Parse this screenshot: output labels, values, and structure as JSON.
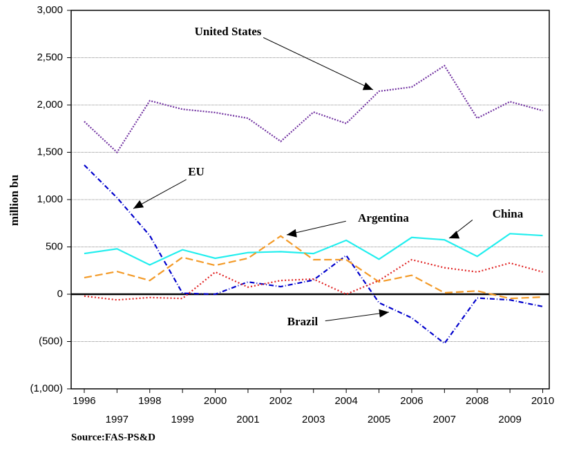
{
  "chart_data": {
    "type": "line",
    "y_label": "million bu",
    "source": "Source:FAS-PS&D",
    "x": [
      1996,
      1997,
      1998,
      1999,
      2000,
      2001,
      2002,
      2003,
      2004,
      2005,
      2006,
      2007,
      2008,
      2009,
      2010
    ],
    "xlim": [
      1995.6,
      2010.2
    ],
    "xticks": [
      1996,
      1997,
      1998,
      1999,
      2000,
      2001,
      2002,
      2003,
      2004,
      2005,
      2006,
      2007,
      2008,
      2009,
      2010
    ],
    "ylim": [
      -1000,
      3000
    ],
    "yticks": [
      {
        "value": -1000,
        "label": "(1,000)"
      },
      {
        "value": -500,
        "label": "(500)"
      },
      0,
      500,
      {
        "value": 1000,
        "label": "1,000"
      },
      {
        "value": 1500,
        "label": "1,500"
      },
      {
        "value": 2000,
        "label": "2,000"
      },
      {
        "value": 2500,
        "label": "2,500"
      },
      {
        "value": 3000,
        "label": "3,000"
      }
    ],
    "grid": true,
    "series": [
      {
        "name": "United States",
        "color": "#7030a0",
        "values": [
          1825,
          1500,
          2045,
          1955,
          1920,
          1860,
          1615,
          1925,
          1805,
          2145,
          2190,
          2415,
          1860,
          2035,
          1940
        ]
      },
      {
        "name": "EU",
        "color": "#0000cc",
        "values": [
          1365,
          1020,
          620,
          10,
          0,
          130,
          80,
          150,
          410,
          -90,
          -250,
          -520,
          -40,
          -60,
          -130
        ]
      },
      {
        "name": "China",
        "color": "#22eeee",
        "values": [
          430,
          480,
          310,
          470,
          380,
          440,
          450,
          430,
          570,
          370,
          600,
          575,
          400,
          640,
          620
        ]
      },
      {
        "name": "Argentina",
        "color": "#f39a27",
        "values": [
          175,
          240,
          145,
          390,
          305,
          380,
          615,
          365,
          365,
          130,
          200,
          15,
          35,
          -45,
          -30
        ]
      },
      {
        "name": "Brazil",
        "color": "#e02020",
        "values": [
          -20,
          -60,
          -35,
          -45,
          235,
          75,
          145,
          160,
          0,
          145,
          365,
          280,
          235,
          330,
          235
        ]
      }
    ]
  }
}
